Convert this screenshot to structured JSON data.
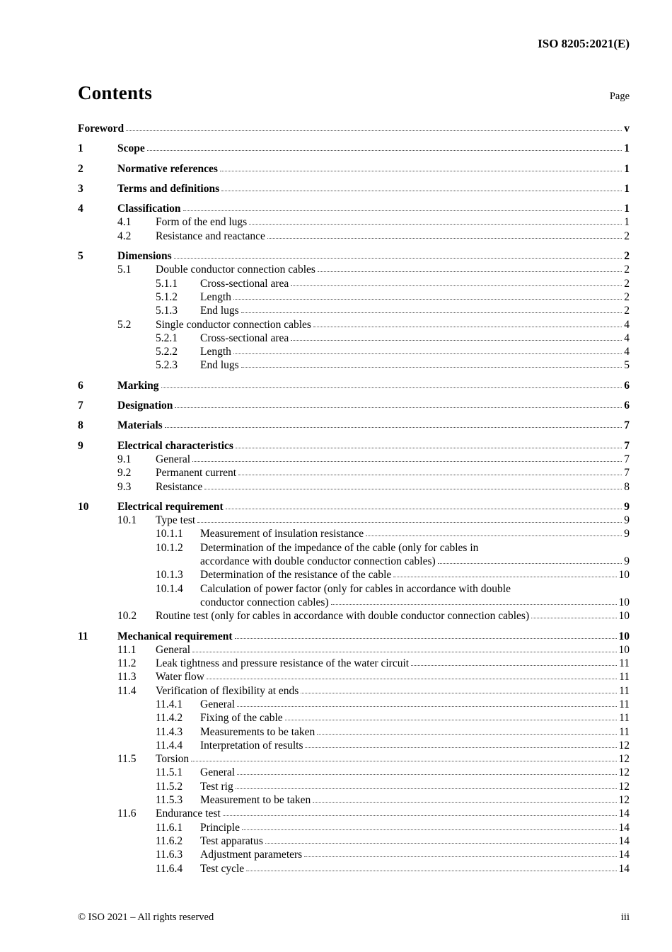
{
  "header": {
    "doc_reference": "ISO 8205:2021(E)"
  },
  "contents": {
    "title": "Contents",
    "page_label": "Page"
  },
  "toc": {
    "entries": [
      {
        "level": 0,
        "number": "",
        "lines": [
          "Foreword"
        ],
        "page": "v"
      },
      {
        "level": 1,
        "number": "1",
        "lines": [
          "Scope"
        ],
        "page": "1"
      },
      {
        "level": 1,
        "number": "2",
        "lines": [
          "Normative references"
        ],
        "page": "1"
      },
      {
        "level": 1,
        "number": "3",
        "lines": [
          "Terms and definitions"
        ],
        "page": "1"
      },
      {
        "level": 1,
        "number": "4",
        "lines": [
          "Classification"
        ],
        "page": "1"
      },
      {
        "level": 2,
        "number": "4.1",
        "lines": [
          "Form of the end lugs"
        ],
        "page": "1"
      },
      {
        "level": 2,
        "number": "4.2",
        "lines": [
          "Resistance and reactance"
        ],
        "page": "2"
      },
      {
        "level": 1,
        "number": "5",
        "lines": [
          "Dimensions"
        ],
        "page": "2"
      },
      {
        "level": 2,
        "number": "5.1",
        "lines": [
          "Double conductor connection cables"
        ],
        "page": "2"
      },
      {
        "level": 3,
        "number": "5.1.1",
        "lines": [
          "Cross-sectional area"
        ],
        "page": "2"
      },
      {
        "level": 3,
        "number": "5.1.2",
        "lines": [
          "Length"
        ],
        "page": "2"
      },
      {
        "level": 3,
        "number": "5.1.3",
        "lines": [
          "End lugs"
        ],
        "page": "2"
      },
      {
        "level": 2,
        "number": "5.2",
        "lines": [
          "Single conductor connection cables"
        ],
        "page": "4"
      },
      {
        "level": 3,
        "number": "5.2.1",
        "lines": [
          "Cross-sectional area"
        ],
        "page": "4"
      },
      {
        "level": 3,
        "number": "5.2.2",
        "lines": [
          "Length"
        ],
        "page": "4"
      },
      {
        "level": 3,
        "number": "5.2.3",
        "lines": [
          "End lugs"
        ],
        "page": "5"
      },
      {
        "level": 1,
        "number": "6",
        "lines": [
          "Marking"
        ],
        "page": "6"
      },
      {
        "level": 1,
        "number": "7",
        "lines": [
          "Designation"
        ],
        "page": "6"
      },
      {
        "level": 1,
        "number": "8",
        "lines": [
          "Materials"
        ],
        "page": "7"
      },
      {
        "level": 1,
        "number": "9",
        "lines": [
          "Electrical characteristics"
        ],
        "page": "7"
      },
      {
        "level": 2,
        "number": "9.1",
        "lines": [
          "General"
        ],
        "page": "7"
      },
      {
        "level": 2,
        "number": "9.2",
        "lines": [
          "Permanent current"
        ],
        "page": "7"
      },
      {
        "level": 2,
        "number": "9.3",
        "lines": [
          "Resistance"
        ],
        "page": "8"
      },
      {
        "level": 1,
        "number": "10",
        "lines": [
          "Electrical requirement"
        ],
        "page": "9"
      },
      {
        "level": 2,
        "number": "10.1",
        "lines": [
          "Type test"
        ],
        "page": "9"
      },
      {
        "level": 3,
        "number": "10.1.1",
        "lines": [
          "Measurement of insulation resistance"
        ],
        "page": "9"
      },
      {
        "level": 3,
        "number": "10.1.2",
        "lines": [
          "Determination of the impedance of the cable (only for cables in",
          "accordance with double conductor connection cables)"
        ],
        "page": "9"
      },
      {
        "level": 3,
        "number": "10.1.3",
        "lines": [
          "Determination of the resistance of the cable"
        ],
        "page": "10"
      },
      {
        "level": 3,
        "number": "10.1.4",
        "lines": [
          "Calculation of power factor (only for cables in accordance with double",
          "conductor connection cables)"
        ],
        "page": "10"
      },
      {
        "level": 2,
        "number": "10.2",
        "lines": [
          "Routine test (only for cables in accordance with double conductor connection cables)"
        ],
        "page": "10"
      },
      {
        "level": 1,
        "number": "11",
        "lines": [
          "Mechanical requirement"
        ],
        "page": "10"
      },
      {
        "level": 2,
        "number": "11.1",
        "lines": [
          "General"
        ],
        "page": "10"
      },
      {
        "level": 2,
        "number": "11.2",
        "lines": [
          "Leak tightness and pressure resistance of the water circuit"
        ],
        "page": "11"
      },
      {
        "level": 2,
        "number": "11.3",
        "lines": [
          "Water flow"
        ],
        "page": "11"
      },
      {
        "level": 2,
        "number": "11.4",
        "lines": [
          "Verification of flexibility at ends"
        ],
        "page": "11"
      },
      {
        "level": 3,
        "number": "11.4.1",
        "lines": [
          "General"
        ],
        "page": "11"
      },
      {
        "level": 3,
        "number": "11.4.2",
        "lines": [
          "Fixing of the cable"
        ],
        "page": "11"
      },
      {
        "level": 3,
        "number": "11.4.3",
        "lines": [
          "Measurements to be taken"
        ],
        "page": "11"
      },
      {
        "level": 3,
        "number": "11.4.4",
        "lines": [
          "Interpretation of results"
        ],
        "page": "12"
      },
      {
        "level": 2,
        "number": "11.5",
        "lines": [
          "Torsion"
        ],
        "page": "12"
      },
      {
        "level": 3,
        "number": "11.5.1",
        "lines": [
          "General"
        ],
        "page": "12"
      },
      {
        "level": 3,
        "number": "11.5.2",
        "lines": [
          "Test rig"
        ],
        "page": "12"
      },
      {
        "level": 3,
        "number": "11.5.3",
        "lines": [
          "Measurement to be taken"
        ],
        "page": "12"
      },
      {
        "level": 2,
        "number": "11.6",
        "lines": [
          "Endurance test"
        ],
        "page": "14"
      },
      {
        "level": 3,
        "number": "11.6.1",
        "lines": [
          "Principle"
        ],
        "page": "14"
      },
      {
        "level": 3,
        "number": "11.6.2",
        "lines": [
          "Test apparatus"
        ],
        "page": "14"
      },
      {
        "level": 3,
        "number": "11.6.3",
        "lines": [
          "Adjustment parameters"
        ],
        "page": "14"
      },
      {
        "level": 3,
        "number": "11.6.4",
        "lines": [
          "Test cycle"
        ],
        "page": "14"
      }
    ]
  },
  "footer": {
    "copyright": "© ISO 2021 – All rights reserved",
    "page_number": "iii"
  }
}
